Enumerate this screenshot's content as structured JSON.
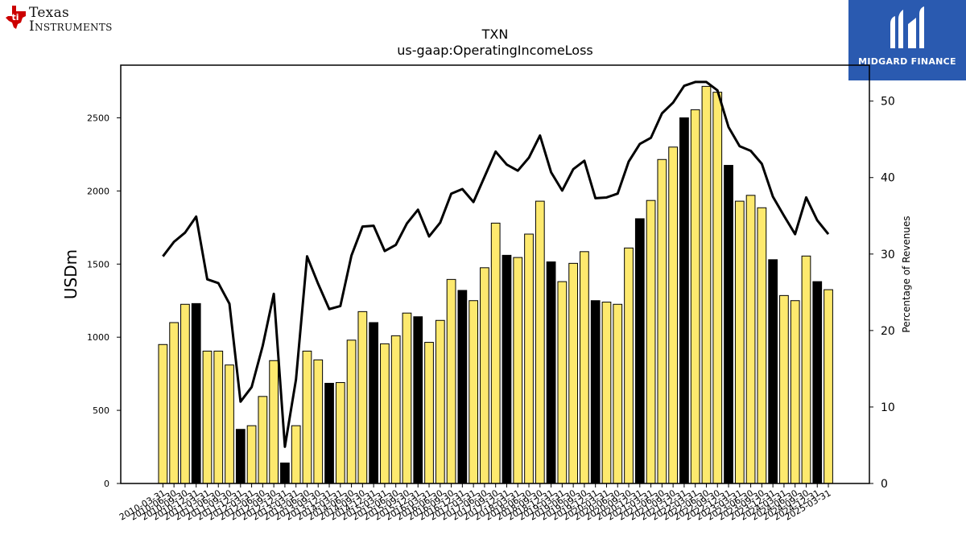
{
  "logos": {
    "left": {
      "name": "texas-instruments",
      "line1": "Texas",
      "line2": "Instruments",
      "color": "#cc0000"
    },
    "right": {
      "name": "midgard-finance",
      "text": "MIDGARD FINANCE",
      "color": "#2a5ab0"
    }
  },
  "chart_data": {
    "type": "bar",
    "title": "TXN",
    "subtitle": "us-gaap:OperatingIncomeLoss",
    "ylabel": "USDm",
    "y2label": "Percentage of Revenues",
    "ylim": [
      0,
      2860
    ],
    "y2lim": [
      0,
      54.7
    ],
    "yticks": [
      0,
      500,
      1000,
      1500,
      2000,
      2500
    ],
    "y2ticks": [
      0,
      10,
      20,
      30,
      40,
      50
    ],
    "bar_color": "#fde96e",
    "highlight_color": "#000000",
    "line_color": "#000000",
    "categories": [
      "2010-03-31",
      "2010-06-30",
      "2010-09-30",
      "2010-12-31",
      "2011-03-31",
      "2011-06-30",
      "2011-09-30",
      "2011-12-31",
      "2012-03-31",
      "2012-06-30",
      "2012-09-30",
      "2012-12-31",
      "2013-03-31",
      "2013-06-30",
      "2013-09-30",
      "2013-12-31",
      "2014-03-31",
      "2014-06-30",
      "2014-09-30",
      "2014-12-31",
      "2015-03-31",
      "2015-06-30",
      "2015-09-30",
      "2015-12-31",
      "2016-03-31",
      "2016-06-30",
      "2016-09-30",
      "2016-12-31",
      "2017-03-31",
      "2017-06-30",
      "2017-09-30",
      "2017-12-31",
      "2018-03-31",
      "2018-06-30",
      "2018-09-30",
      "2018-12-31",
      "2019-03-31",
      "2019-06-30",
      "2019-09-30",
      "2019-12-31",
      "2020-03-31",
      "2020-06-30",
      "2020-09-30",
      "2020-12-31",
      "2021-03-31",
      "2021-06-30",
      "2021-09-30",
      "2021-12-31",
      "2022-03-31",
      "2022-06-30",
      "2022-09-30",
      "2022-12-31",
      "2023-03-31",
      "2023-06-30",
      "2023-09-30",
      "2023-12-31",
      "2024-03-31",
      "2024-06-30",
      "2024-09-30",
      "2024-12-31",
      "2025-03-31"
    ],
    "xtick_labels": [
      "2010-03-31",
      "2010-06-30",
      "2010-09-30",
      "2010-12-31",
      "2011-03-31",
      "2011-06-30",
      "2011-09-30",
      "2011-12-31",
      "2012-03-31",
      "2012-06-30",
      "2012-09-30",
      "2012-12-31",
      "2013-03-31",
      "2013-06-30",
      "2013-09-30",
      "2013-12-31",
      "2014-03-31",
      "2014-06-30",
      "2014-09-30",
      "2014-12-31",
      "2015-03-31",
      "2015-06-30",
      "2015-09-30",
      "2015-12-31",
      "2016-03-31",
      "2016-06-30",
      "2016-09-30",
      "2016-12-31",
      "2017-03-31",
      "2017-06-30",
      "2017-09-30",
      "2017-12-31",
      "2018-03-31",
      "2018-06-30",
      "2018-09-30",
      "2018-12-31",
      "2019-03-31",
      "2019-06-30",
      "2019-09-30",
      "2019-12-31",
      "2020-03-31",
      "2020-06-30",
      "2020-09-30",
      "2020-12-31",
      "2021-03-31",
      "2021-06-30",
      "2021-09-30",
      "2021-12-31",
      "2022-03-31",
      "2022-06-30",
      "2022-09-30",
      "2022-12-31",
      "2023-03-31",
      "2023-06-30",
      "2023-09-30",
      "2023-12-31",
      "2024-03-31",
      "2024-06-30",
      "2024-09-30",
      "2024-12-31",
      "2025-03-31"
    ],
    "series": [
      {
        "type": "bar",
        "axis": "left",
        "values": [
          950,
          1100,
          1225,
          1230,
          905,
          905,
          810,
          370,
          395,
          595,
          840,
          140,
          395,
          905,
          845,
          685,
          690,
          980,
          1175,
          1100,
          955,
          1010,
          1165,
          1140,
          965,
          1115,
          1395,
          1320,
          1250,
          1475,
          1780,
          1560,
          1545,
          1705,
          1930,
          1515,
          1380,
          1505,
          1585,
          1250,
          1240,
          1225,
          1610,
          1810,
          1935,
          2215,
          2300,
          2500,
          2555,
          2715,
          2675,
          2175,
          1930,
          1970,
          1885,
          1530,
          1285,
          1250,
          1555,
          1380,
          1325
        ],
        "highlight": [
          3,
          7,
          11,
          15,
          19,
          23,
          27,
          31,
          35,
          39,
          43,
          47,
          51,
          55,
          59
        ]
      },
      {
        "type": "line",
        "axis": "right",
        "values": [
          29.7,
          31.6,
          32.8,
          34.9,
          26.7,
          26.2,
          23.5,
          10.7,
          12.6,
          18.0,
          24.8,
          4.8,
          13.6,
          29.7,
          26.1,
          22.8,
          23.2,
          29.8,
          33.6,
          33.7,
          30.4,
          31.2,
          34.0,
          35.8,
          32.3,
          34.1,
          37.9,
          38.5,
          36.8,
          40.1,
          43.4,
          41.7,
          40.9,
          42.6,
          45.5,
          40.7,
          38.3,
          41.1,
          42.2,
          37.3,
          37.4,
          37.9,
          42.1,
          44.4,
          45.2,
          48.4,
          49.8,
          52.0,
          52.5,
          52.5,
          51.4,
          46.6,
          44.1,
          43.5,
          41.8,
          37.5,
          35.0,
          32.6,
          37.4,
          34.4,
          32.6
        ]
      }
    ]
  }
}
